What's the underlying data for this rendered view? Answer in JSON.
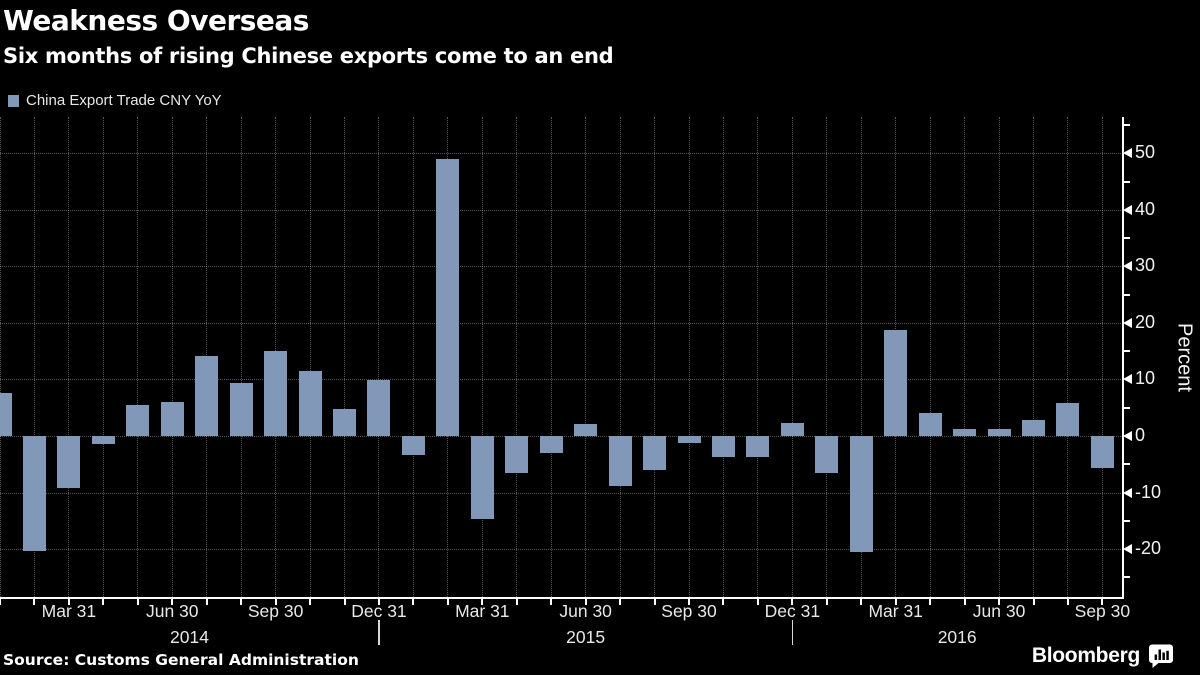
{
  "header": {
    "title": "Weakness Overseas",
    "subtitle": "Six months of rising Chinese exports come to an end"
  },
  "legend": {
    "label": "China Export Trade CNY YoY",
    "swatch_color": "#8198B8"
  },
  "chart_data": {
    "type": "bar",
    "title": "Weakness Overseas",
    "subtitle": "Six months of rising Chinese exports come to an end",
    "series_name": "China Export Trade CNY YoY",
    "ylabel": "Percent",
    "bar_color": "#8198B8",
    "background_color": "#000000",
    "grid": "dotted; vertical line per month, horizontal line per 10 units",
    "legend_position": "top-left",
    "ylim": [
      -28,
      56
    ],
    "yticks_major": [
      50,
      40,
      30,
      20,
      10,
      0,
      -10,
      -20
    ],
    "yticks_minor": [
      55,
      45,
      35,
      25,
      15,
      5,
      -5,
      -15,
      -25
    ],
    "x": [
      "2014-01",
      "2014-02",
      "2014-03",
      "2014-04",
      "2014-05",
      "2014-06",
      "2014-07",
      "2014-08",
      "2014-09",
      "2014-10",
      "2014-11",
      "2014-12",
      "2015-01",
      "2015-02",
      "2015-03",
      "2015-04",
      "2015-05",
      "2015-06",
      "2015-07",
      "2015-08",
      "2015-09",
      "2015-10",
      "2015-11",
      "2015-12",
      "2016-01",
      "2016-02",
      "2016-03",
      "2016-04",
      "2016-05",
      "2016-06",
      "2016-07",
      "2016-08",
      "2016-09"
    ],
    "values": [
      7.6,
      -20.4,
      -9.2,
      -1.5,
      5.4,
      6.1,
      14.1,
      9.3,
      15.1,
      11.5,
      4.7,
      9.9,
      -3.3,
      48.9,
      -14.6,
      -6.5,
      -3.0,
      2.1,
      -8.9,
      -6.1,
      -1.2,
      -3.7,
      -3.8,
      2.3,
      -6.6,
      -20.6,
      18.7,
      4.1,
      1.2,
      1.3,
      2.9,
      5.9,
      -5.6
    ],
    "xtick_quarter_labels": [
      {
        "label": "Mar 31",
        "month_index": 2
      },
      {
        "label": "Jun 30",
        "month_index": 5
      },
      {
        "label": "Sep 30",
        "month_index": 8
      },
      {
        "label": "Dec 31",
        "month_index": 11
      },
      {
        "label": "Mar 31",
        "month_index": 14
      },
      {
        "label": "Jun 30",
        "month_index": 17
      },
      {
        "label": "Sep 30",
        "month_index": 20
      },
      {
        "label": "Dec 31",
        "month_index": 23
      },
      {
        "label": "Mar 31",
        "month_index": 26
      },
      {
        "label": "Jun 30",
        "month_index": 29
      },
      {
        "label": "Sep 30",
        "month_index": 32
      }
    ],
    "year_labels": [
      "2014",
      "2015",
      "2016"
    ],
    "year_separator_month_indices": [
      11,
      23
    ]
  },
  "footer": {
    "source": "Source: Customs General Administration",
    "brand": "Bloomberg"
  }
}
